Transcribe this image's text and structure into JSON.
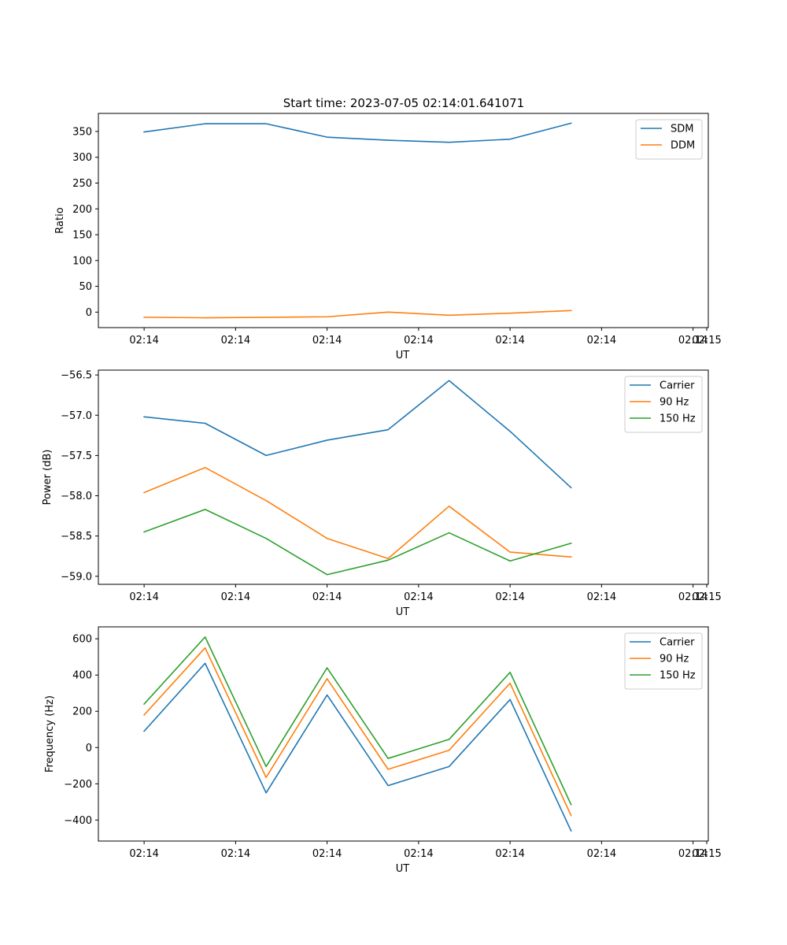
{
  "figure": {
    "title": "Start time: 2023-07-05 02:14:01.641071"
  },
  "colors": {
    "blue": "#1f77b4",
    "orange": "#ff7f0e",
    "green": "#2ca02c"
  },
  "chart_data": [
    {
      "type": "line",
      "title": "Start time: 2023-07-05 02:14:01.641071",
      "xlabel": "UT",
      "ylabel": "Ratio",
      "x_tick_labels": [
        "02:14",
        "02:14",
        "02:14",
        "02:14",
        "02:14",
        "02:14",
        "02:14"
      ],
      "x_tick_positions": [
        0,
        1.5,
        3,
        4.5,
        6,
        7.5,
        9
      ],
      "x_end_tick_label": "02:15",
      "xlim": [
        -0.75,
        9.25
      ],
      "y_ticks": [
        0,
        50,
        100,
        150,
        200,
        250,
        300,
        350
      ],
      "ylim": [
        -30,
        385
      ],
      "x": [
        0,
        1,
        2,
        3,
        4,
        5,
        6,
        7
      ],
      "series": [
        {
          "name": "SDM",
          "color": "#1f77b4",
          "values": [
            349,
            365,
            365,
            339,
            333,
            329,
            335,
            366
          ]
        },
        {
          "name": "DDM",
          "color": "#ff7f0e",
          "values": [
            -10,
            -11,
            -10,
            -9,
            0,
            -6,
            -2,
            3
          ]
        }
      ],
      "legend": "upper-right",
      "grid": false
    },
    {
      "type": "line",
      "title": "",
      "xlabel": "UT",
      "ylabel": "Power (dB)",
      "x_tick_labels": [
        "02:14",
        "02:14",
        "02:14",
        "02:14",
        "02:14",
        "02:14",
        "02:14"
      ],
      "x_tick_positions": [
        0,
        1.5,
        3,
        4.5,
        6,
        7.5,
        9
      ],
      "x_end_tick_label": "02:15",
      "xlim": [
        -0.75,
        9.25
      ],
      "y_ticks": [
        -59.0,
        -58.5,
        -58.0,
        -57.5,
        -57.0,
        -56.5
      ],
      "y_tick_labels": [
        "−59.0",
        "−58.5",
        "−58.0",
        "−57.5",
        "−57.0",
        "−56.5"
      ],
      "ylim": [
        -59.1,
        -56.44
      ],
      "x": [
        0,
        1,
        2,
        3,
        4,
        5,
        6,
        7
      ],
      "series": [
        {
          "name": "Carrier",
          "color": "#1f77b4",
          "values": [
            -57.02,
            -57.1,
            -57.5,
            -57.31,
            -57.18,
            -56.57,
            -57.2,
            -57.9
          ]
        },
        {
          "name": "90 Hz",
          "color": "#ff7f0e",
          "values": [
            -57.96,
            -57.65,
            -58.06,
            -58.53,
            -58.78,
            -58.13,
            -58.7,
            -58.76
          ]
        },
        {
          "name": "150 Hz",
          "color": "#2ca02c",
          "values": [
            -58.45,
            -58.17,
            -58.53,
            -58.98,
            -58.8,
            -58.46,
            -58.81,
            -58.59
          ]
        }
      ],
      "legend": "upper-right",
      "grid": false
    },
    {
      "type": "line",
      "title": "",
      "xlabel": "UT",
      "ylabel": "Frequency (Hz)",
      "x_tick_labels": [
        "02:14",
        "02:14",
        "02:14",
        "02:14",
        "02:14",
        "02:14",
        "02:14"
      ],
      "x_tick_positions": [
        0,
        1.5,
        3,
        4.5,
        6,
        7.5,
        9
      ],
      "x_end_tick_label": "02:15",
      "xlim": [
        -0.75,
        9.25
      ],
      "y_ticks": [
        -400,
        -200,
        0,
        200,
        400,
        600
      ],
      "y_tick_labels": [
        "−400",
        "−200",
        "0",
        "200",
        "400",
        "600"
      ],
      "ylim": [
        -516,
        666
      ],
      "x": [
        0,
        1,
        2,
        3,
        4,
        5,
        6,
        7
      ],
      "series": [
        {
          "name": "Carrier",
          "color": "#1f77b4",
          "values": [
            90,
            465,
            -250,
            290,
            -210,
            -105,
            265,
            -460
          ]
        },
        {
          "name": "90 Hz",
          "color": "#ff7f0e",
          "values": [
            180,
            550,
            -165,
            380,
            -120,
            -15,
            355,
            -375
          ]
        },
        {
          "name": "150 Hz",
          "color": "#2ca02c",
          "values": [
            240,
            610,
            -105,
            440,
            -60,
            45,
            415,
            -315
          ]
        }
      ],
      "legend": "upper-right",
      "grid": false
    }
  ]
}
